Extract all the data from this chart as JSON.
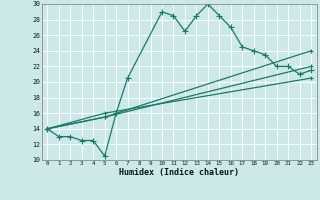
{
  "xlabel": "Humidex (Indice chaleur)",
  "bg_color": "#cce8e8",
  "grid_color": "#ffffff",
  "line_color": "#1a7a6a",
  "xlim": [
    -0.5,
    23.5
  ],
  "ylim": [
    10,
    30
  ],
  "xticks": [
    0,
    1,
    2,
    3,
    4,
    5,
    6,
    7,
    8,
    9,
    10,
    11,
    12,
    13,
    14,
    15,
    16,
    17,
    18,
    19,
    20,
    21,
    22,
    23
  ],
  "yticks": [
    10,
    12,
    14,
    16,
    18,
    20,
    22,
    24,
    26,
    28,
    30
  ],
  "series1_x": [
    0,
    1,
    2,
    3,
    4,
    5,
    6,
    7,
    10,
    11,
    12,
    13,
    14,
    15,
    16,
    17,
    18,
    19,
    20,
    21,
    22,
    23
  ],
  "series1_y": [
    14,
    13,
    13,
    12.5,
    12.5,
    10.5,
    16,
    20.5,
    29,
    28.5,
    26.5,
    28.5,
    30,
    28.5,
    27,
    24.5,
    24,
    23.5,
    22,
    22,
    21,
    21.5
  ],
  "series2_x": [
    0,
    5,
    23
  ],
  "series2_y": [
    14,
    15.5,
    22
  ],
  "series3_x": [
    0,
    5,
    23
  ],
  "series3_y": [
    14,
    15.5,
    24
  ],
  "series4_x": [
    0,
    5,
    23
  ],
  "series4_y": [
    14,
    16,
    20.5
  ]
}
